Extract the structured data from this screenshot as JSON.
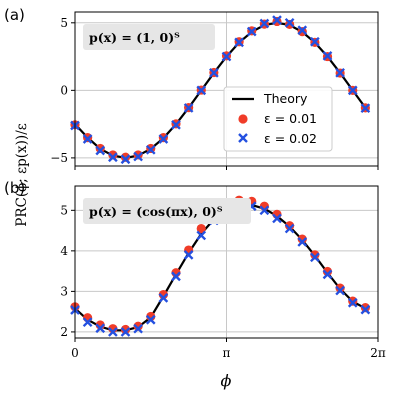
{
  "figure": {
    "ylabel": "PRC(ϕ; εp(x))/ε",
    "xlabel": "ϕ"
  },
  "colors": {
    "theory": "#000000",
    "eps_small": "#f03c28",
    "eps_large": "#2450e0",
    "grid": "#c8c8c8",
    "annotation_bg": "#e6e6e6"
  },
  "legend": {
    "placement": "center-right (panel a)",
    "entries": [
      {
        "label": "Theory",
        "marker": "line"
      },
      {
        "label": "ε = 0.01",
        "marker": "circle"
      },
      {
        "label": "ε = 0.02",
        "marker": "x"
      }
    ]
  },
  "chart_data": [
    {
      "type": "line",
      "panel_label": "(a)",
      "annotation": "p(x) = (1, 0)ᵀ",
      "xlim": [
        0,
        6.2832
      ],
      "ylim": [
        -5.6,
        5.8
      ],
      "x_ticks": [
        {
          "value": 0,
          "label": "0"
        },
        {
          "value": 3.1416,
          "label": "π"
        },
        {
          "value": 6.2832,
          "label": "2π"
        }
      ],
      "y_ticks": [
        {
          "value": -5,
          "label": "−5"
        },
        {
          "value": 0,
          "label": "0"
        },
        {
          "value": 5,
          "label": "5"
        }
      ],
      "grid": true,
      "x": [
        0,
        0.2618,
        0.5236,
        0.7854,
        1.0472,
        1.309,
        1.5708,
        1.8326,
        2.0944,
        2.3562,
        2.618,
        2.8798,
        3.1416,
        3.4034,
        3.6652,
        3.927,
        4.1888,
        4.4506,
        4.7124,
        4.9742,
        5.236,
        5.4978,
        5.7596,
        6.0214
      ],
      "series": [
        {
          "name": "Theory",
          "kind": "line",
          "values": [
            -2.5,
            -3.5,
            -4.33,
            -4.83,
            -5.0,
            -4.83,
            -4.33,
            -3.54,
            -2.5,
            -1.29,
            0.0,
            1.29,
            2.5,
            3.54,
            4.33,
            4.83,
            5.0,
            4.83,
            4.33,
            3.54,
            2.5,
            1.29,
            0.0,
            -1.29
          ]
        },
        {
          "name": "ε = 0.01",
          "kind": "circle",
          "values": [
            -2.55,
            -3.5,
            -4.3,
            -4.78,
            -4.95,
            -4.78,
            -4.3,
            -3.5,
            -2.48,
            -1.28,
            0.02,
            1.32,
            2.55,
            3.6,
            4.4,
            4.9,
            5.1,
            4.88,
            4.35,
            3.55,
            2.5,
            1.28,
            0.0,
            -1.3
          ]
        },
        {
          "name": "ε = 0.02",
          "kind": "x",
          "values": [
            -2.6,
            -3.6,
            -4.45,
            -4.95,
            -5.1,
            -4.9,
            -4.4,
            -3.6,
            -2.55,
            -1.3,
            0.0,
            1.3,
            2.5,
            3.55,
            4.35,
            4.95,
            5.2,
            5.0,
            4.45,
            3.6,
            2.55,
            1.3,
            0.0,
            -1.32
          ]
        }
      ]
    },
    {
      "type": "line",
      "panel_label": "(b)",
      "annotation": "p(x) = (cos(πx), 0)ᵀ",
      "xlim": [
        0,
        6.2832
      ],
      "ylim": [
        1.85,
        5.6
      ],
      "x_ticks": [
        {
          "value": 0,
          "label": "0"
        },
        {
          "value": 3.1416,
          "label": "π"
        },
        {
          "value": 6.2832,
          "label": "2π"
        }
      ],
      "y_ticks": [
        {
          "value": 2,
          "label": "2"
        },
        {
          "value": 3,
          "label": "3"
        },
        {
          "value": 4,
          "label": "4"
        },
        {
          "value": 5,
          "label": "5"
        }
      ],
      "grid": true,
      "x": [
        0,
        0.2618,
        0.5236,
        0.7854,
        1.0472,
        1.309,
        1.5708,
        1.8326,
        2.0944,
        2.3562,
        2.618,
        2.8798,
        3.1416,
        3.4034,
        3.6652,
        3.927,
        4.1888,
        4.4506,
        4.7124,
        4.9742,
        5.236,
        5.4978,
        5.7596,
        6.0214
      ],
      "series": [
        {
          "name": "Theory",
          "kind": "line",
          "values": [
            2.58,
            2.3,
            2.13,
            2.04,
            2.04,
            2.12,
            2.36,
            2.88,
            3.42,
            3.95,
            4.42,
            4.78,
            5.02,
            5.12,
            5.13,
            5.04,
            4.86,
            4.6,
            4.27,
            3.88,
            3.46,
            3.06,
            2.75,
            2.58
          ]
        },
        {
          "name": "ε = 0.01",
          "kind": "circle",
          "values": [
            2.62,
            2.35,
            2.17,
            2.08,
            2.06,
            2.14,
            2.38,
            2.92,
            3.46,
            4.02,
            4.55,
            4.95,
            5.18,
            5.25,
            5.22,
            5.1,
            4.9,
            4.62,
            4.29,
            3.9,
            3.49,
            3.08,
            2.76,
            2.6
          ]
        },
        {
          "name": "ε = 0.02",
          "kind": "x",
          "values": [
            2.54,
            2.24,
            2.09,
            2.0,
            2.0,
            2.08,
            2.3,
            2.84,
            3.37,
            3.9,
            4.38,
            4.75,
            5.0,
            5.1,
            5.1,
            5.0,
            4.8,
            4.55,
            4.22,
            3.84,
            3.42,
            3.02,
            2.72,
            2.55
          ]
        }
      ]
    }
  ]
}
